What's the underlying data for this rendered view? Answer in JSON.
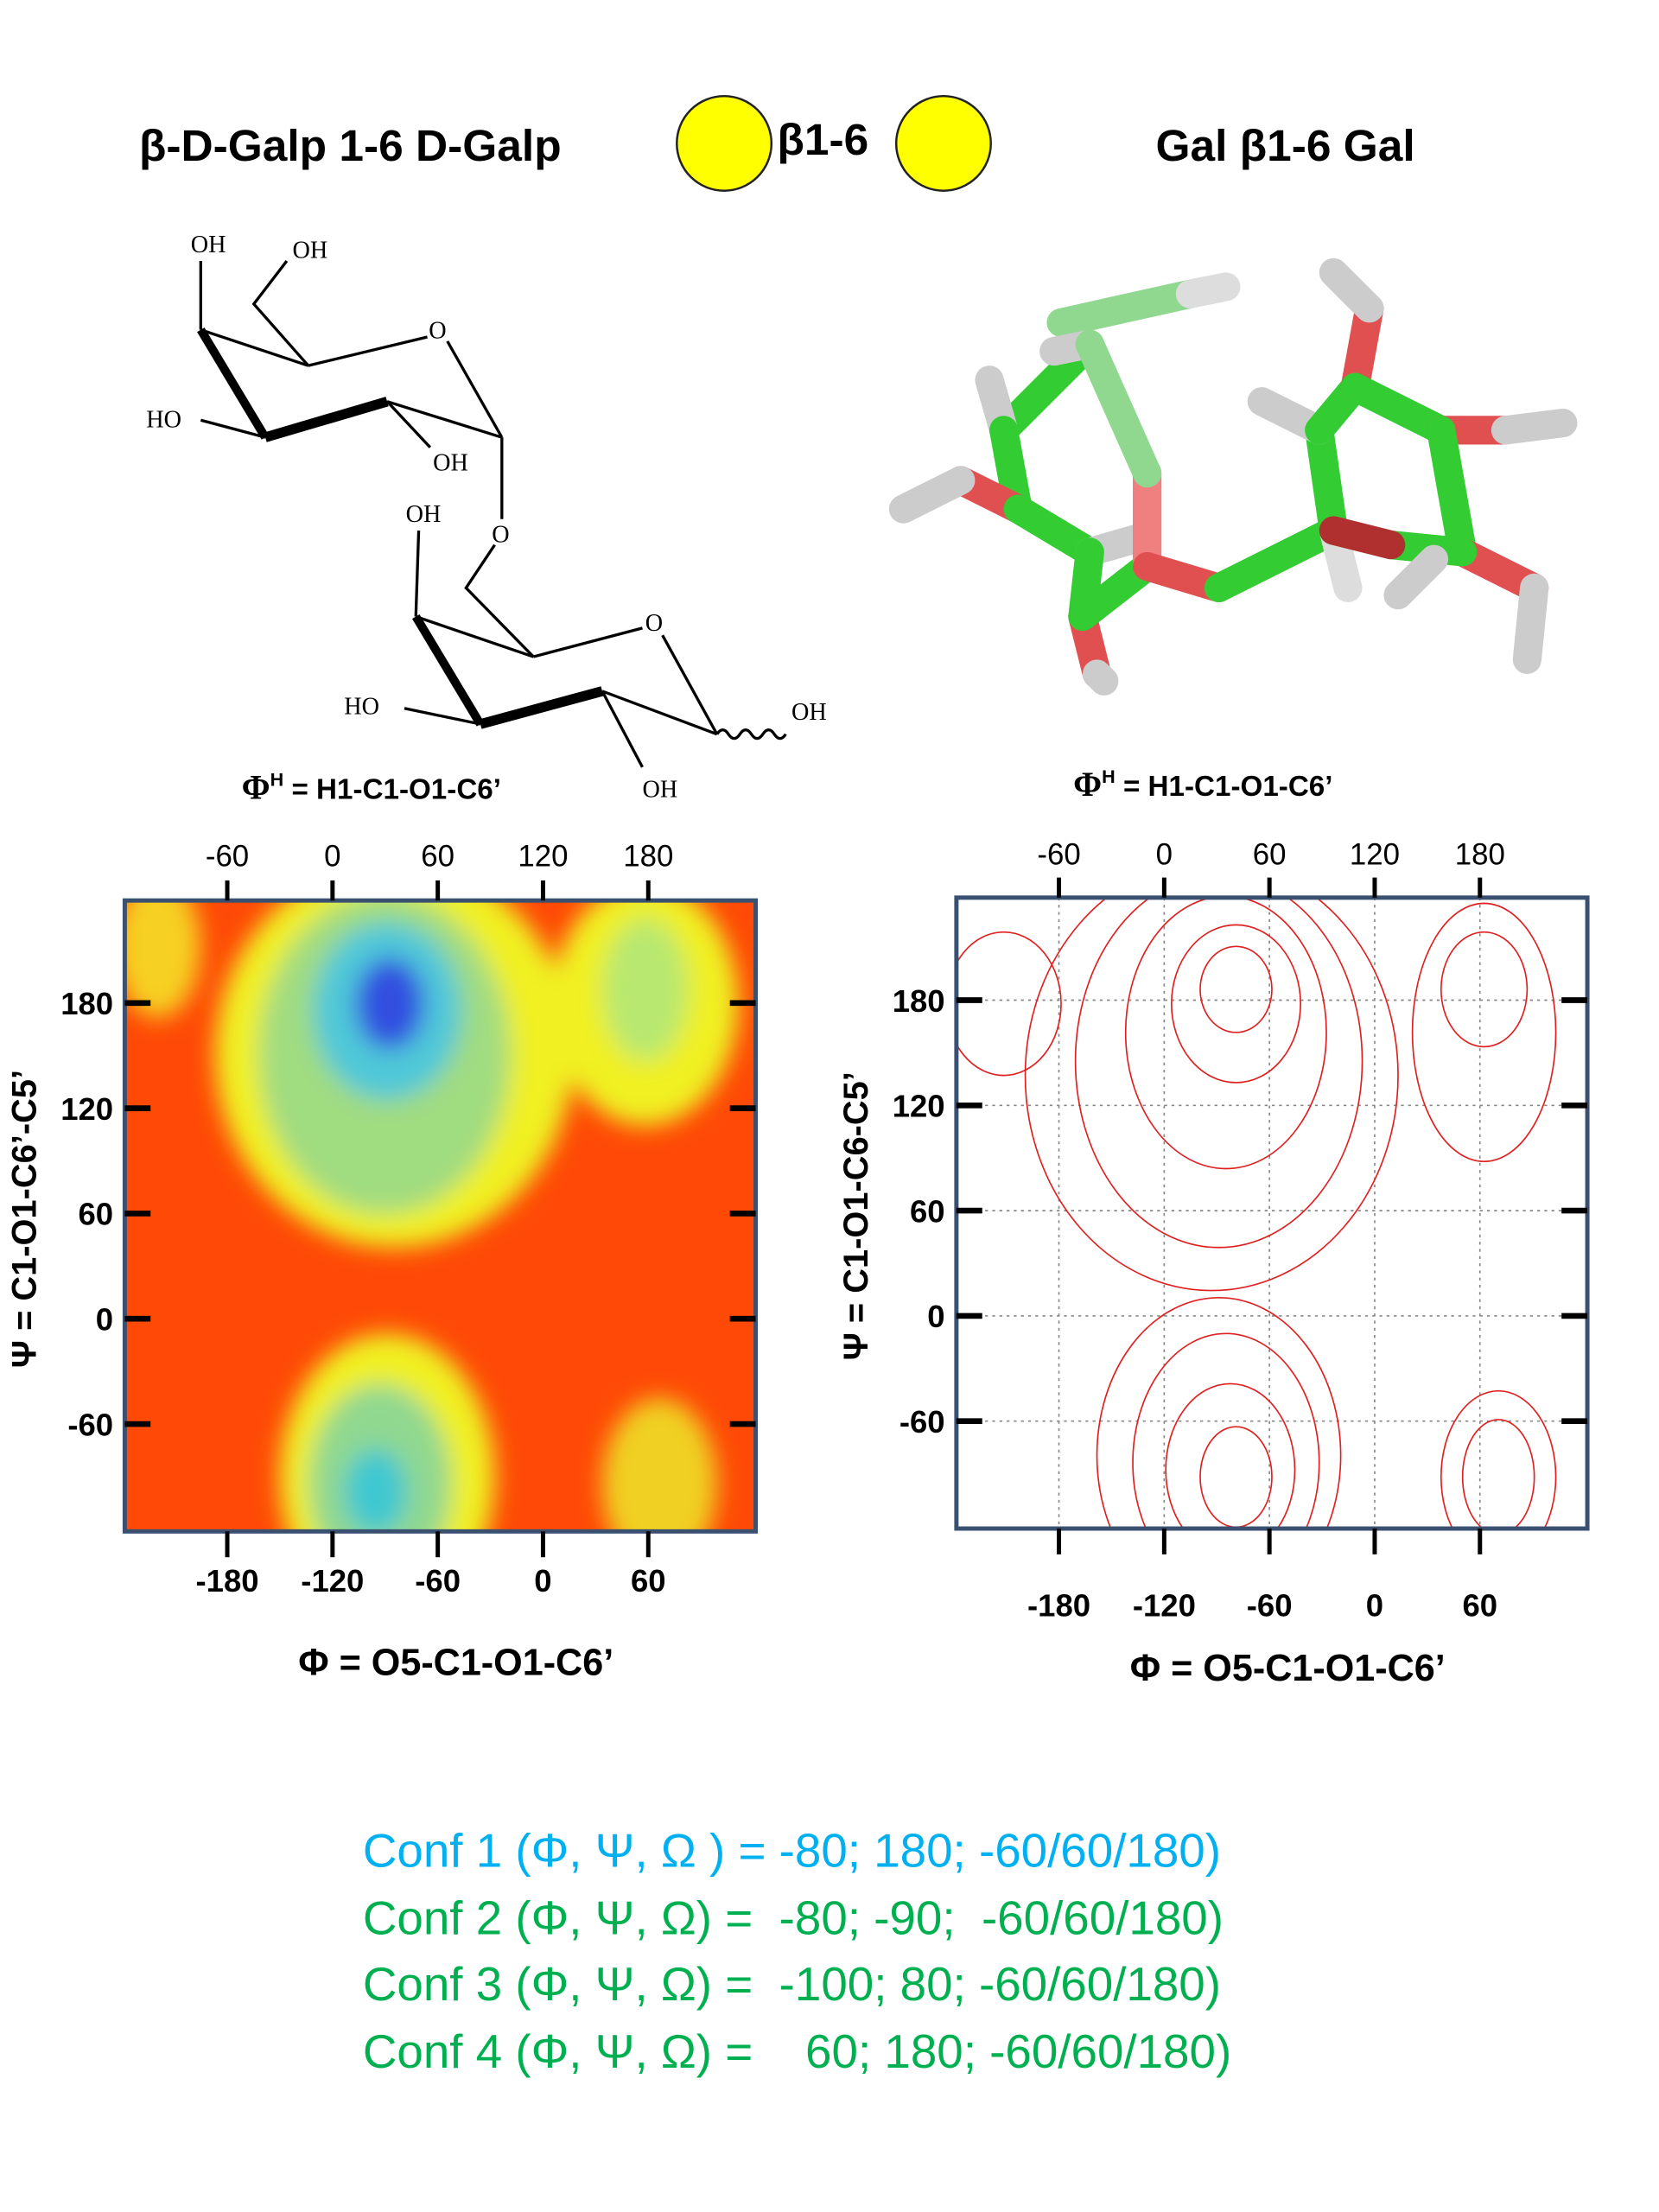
{
  "header": {
    "left": "β-D-Galp 1-6 D-Galp",
    "linkage": "β1-6",
    "right": "Gal β1-6 Gal"
  },
  "structure": {
    "labels": [
      "OH",
      "OH",
      "O",
      "HO",
      "OH",
      "O",
      "OH",
      "O",
      "HO",
      "OH",
      "OH"
    ]
  },
  "plots": [
    {
      "top_label": {
        "symbol": "Φ",
        "sup": "H",
        "rest": " = H1-C1-O1-C6’"
      },
      "top_ticks": [
        "-60",
        "0",
        "60",
        "120",
        "180"
      ],
      "left_ticks": [
        "180",
        "120",
        "60",
        "0",
        "-60"
      ],
      "bottom_ticks": [
        "-180",
        "-120",
        "-60",
        "0",
        "60"
      ],
      "y_label": "Ψ = C1-O1-C6’-C5’",
      "x_label": "Φ = O5-C1-O1-C6’"
    },
    {
      "top_label": {
        "symbol": "Φ",
        "sup": "H",
        "rest": " = H1-C1-O1-C6’"
      },
      "top_ticks": [
        "-60",
        "0",
        "60",
        "120",
        "180"
      ],
      "left_ticks": [
        "180",
        "120",
        "60",
        "0",
        "-60"
      ],
      "bottom_ticks": [
        "-180",
        "-120",
        "-60",
        "0",
        "60"
      ],
      "y_label": "Ψ = C1-O1-C6-C5’",
      "x_label": "Φ = O5-C1-O1-C6’"
    }
  ],
  "conformations": [
    "Conf 1 (Φ, Ψ, Ω ) = -80; 180; -60/60/180)",
    "Conf 2 (Φ, Ψ, Ω) =  -80; -90;  -60/60/180)",
    "Conf 3 (Φ, Ψ, Ω) =  -100; 80; -60/60/180)",
    "Conf 4 (Φ, Ψ, Ω) =    60; 180; -60/60/180)"
  ]
}
